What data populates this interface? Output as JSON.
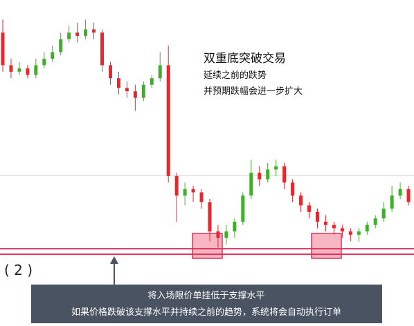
{
  "chart_data": {
    "type": "candlestick",
    "title": "双重底突破交易",
    "subtitle": [
      "延续之前的跌势",
      "并预期跌幅会进一步扩大"
    ],
    "label": "( 2 )",
    "annotation": [
      "将入场限价单挂低于支撑水平",
      "如果价格跌破该支撑水平并持续之前的趋势，系统将会自动执行订单"
    ],
    "ylim": [
      0,
      100
    ],
    "up_color": "#3fae2a",
    "down_color": "#e8262e",
    "reference_lines": [
      46.2
    ],
    "support_levels": [
      23.7,
      22
    ],
    "support_color": "#e0305a",
    "open": [
      90,
      80,
      78,
      79,
      77,
      80,
      82,
      84,
      88,
      90,
      89,
      91,
      90,
      80,
      76,
      73,
      72,
      70,
      74,
      76,
      80,
      46,
      40,
      42,
      41,
      38,
      29,
      27,
      29,
      32,
      40,
      47,
      45,
      48,
      49,
      44,
      40,
      37,
      35,
      32,
      31,
      30,
      29,
      28,
      29,
      31,
      33,
      36,
      40,
      42
    ],
    "close": [
      80,
      78,
      79,
      77,
      80,
      82,
      84,
      88,
      90,
      89,
      91,
      90,
      80,
      76,
      73,
      72,
      70,
      74,
      76,
      80,
      46,
      40,
      42,
      41,
      38,
      29,
      27,
      29,
      32,
      40,
      47,
      45,
      48,
      49,
      44,
      40,
      37,
      35,
      32,
      31,
      30,
      29,
      28,
      29,
      31,
      33,
      36,
      40,
      42,
      38
    ],
    "high": [
      94,
      82,
      81,
      80,
      82,
      84,
      86,
      90,
      92,
      93,
      94,
      93,
      91,
      81,
      78,
      75,
      74,
      75,
      77,
      84,
      86,
      47,
      44,
      43,
      42,
      39,
      31,
      31,
      33,
      41,
      51,
      49,
      50,
      51,
      50,
      45,
      41,
      38,
      36,
      34,
      32,
      31,
      30,
      30,
      32,
      34,
      38,
      43,
      44,
      43
    ],
    "low": [
      78,
      76,
      77,
      76,
      76,
      79,
      81,
      83,
      87,
      87,
      88,
      88,
      78,
      74,
      71,
      70,
      66,
      69,
      73,
      75,
      44,
      32,
      37,
      38,
      36,
      26,
      24,
      25,
      27,
      31,
      39,
      43,
      44,
      46,
      42,
      38,
      35,
      33,
      30,
      29,
      28,
      27,
      26,
      26,
      28,
      30,
      32,
      35,
      39,
      37
    ]
  }
}
